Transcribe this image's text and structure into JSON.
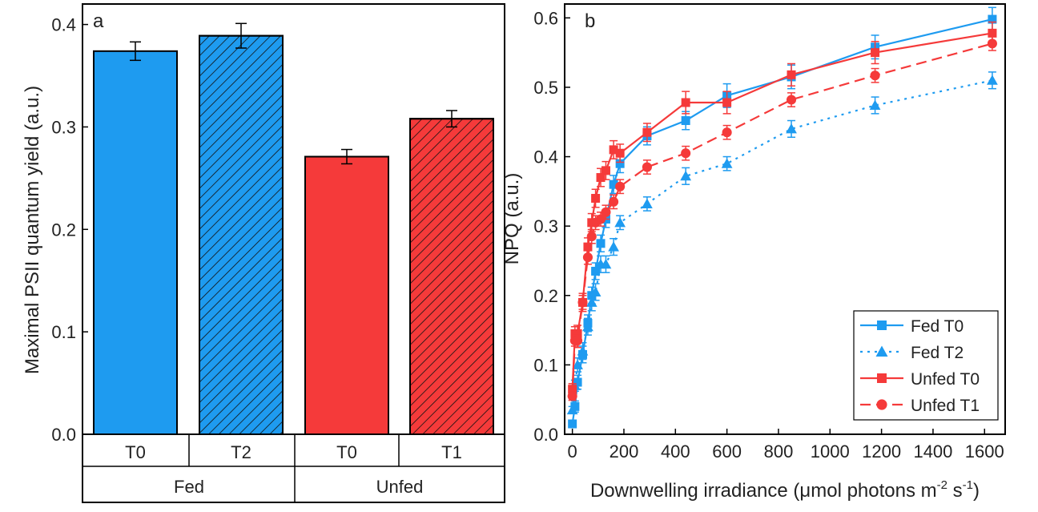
{
  "chart_data": [
    {
      "type": "bar",
      "panel_label": "a",
      "ylabel": "Maximal PSII quantum yield (a.u.)",
      "ylim": [
        0,
        0.42
      ],
      "yticks": [
        "0.0",
        "0.1",
        "0.2",
        "0.3",
        "0.4"
      ],
      "categories": [
        "T0",
        "T2",
        "T0",
        "T1"
      ],
      "groups": [
        {
          "label": "Fed",
          "span": [
            0,
            1
          ]
        },
        {
          "label": "Unfed",
          "span": [
            2,
            3
          ]
        }
      ],
      "values": [
        0.374,
        0.389,
        0.271,
        0.308
      ],
      "errors": [
        0.009,
        0.012,
        0.007,
        0.008
      ],
      "bar_colors": [
        "#1e9bf0",
        "#1e9bf0",
        "#f53a3a",
        "#f53a3a"
      ],
      "hatched": [
        false,
        true,
        false,
        true
      ]
    },
    {
      "type": "line",
      "panel_label": "b",
      "xlabel": "Downwelling irradiance (μmol photons m",
      "xlabel_sup1": "-2",
      "xlabel_mid": " s",
      "xlabel_sup2": "-1",
      "xlabel_end": ")",
      "ylabel": "NPQ (a.u.)",
      "xlim": [
        -30,
        1680
      ],
      "ylim": [
        0,
        0.62
      ],
      "xticks": [
        "0",
        "200",
        "400",
        "600",
        "800",
        "1000",
        "1200",
        "1400",
        "1600"
      ],
      "yticks": [
        "0.0",
        "0.1",
        "0.2",
        "0.3",
        "0.4",
        "0.5",
        "0.6"
      ],
      "legend_position": "bottom-right",
      "x": [
        0,
        10,
        20,
        40,
        60,
        75,
        90,
        110,
        130,
        160,
        185,
        290,
        440,
        600,
        850,
        1175,
        1630
      ],
      "series": [
        {
          "name": "Fed T0",
          "color": "#1e9bf0",
          "marker": "square",
          "dash": "solid",
          "values": [
            0.015,
            0.04,
            0.075,
            0.115,
            0.16,
            0.2,
            0.235,
            0.275,
            0.31,
            0.36,
            0.39,
            0.43,
            0.452,
            0.488,
            0.515,
            0.558,
            0.598
          ],
          "errors": [
            0.005,
            0.008,
            0.01,
            0.012,
            0.012,
            0.012,
            0.012,
            0.012,
            0.012,
            0.013,
            0.013,
            0.013,
            0.013,
            0.017,
            0.017,
            0.017,
            0.017
          ]
        },
        {
          "name": "Fed T2",
          "color": "#1e9bf0",
          "marker": "triangle",
          "dash": "dotted",
          "values": [
            0.035,
            0.07,
            0.1,
            0.12,
            0.155,
            0.19,
            0.205,
            0.245,
            0.245,
            0.27,
            0.305,
            0.332,
            0.372,
            0.39,
            0.44,
            0.474,
            0.51
          ],
          "errors": [
            0.005,
            0.008,
            0.01,
            0.012,
            0.012,
            0.012,
            0.012,
            0.012,
            0.012,
            0.012,
            0.01,
            0.01,
            0.012,
            0.01,
            0.012,
            0.012,
            0.012
          ]
        },
        {
          "name": "Unfed T0",
          "color": "#f53a3a",
          "marker": "square",
          "dash": "solid",
          "values": [
            0.065,
            0.145,
            0.145,
            0.19,
            0.27,
            0.305,
            0.34,
            0.37,
            0.38,
            0.41,
            0.405,
            0.435,
            0.478,
            0.478,
            0.518,
            0.55,
            0.578
          ],
          "errors": [
            0.008,
            0.01,
            0.012,
            0.013,
            0.013,
            0.013,
            0.013,
            0.013,
            0.013,
            0.013,
            0.013,
            0.013,
            0.016,
            0.016,
            0.016,
            0.016,
            0.016
          ]
        },
        {
          "name": "Unfed T1",
          "color": "#f53a3a",
          "marker": "circle",
          "dash": "dashed",
          "values": [
            0.055,
            0.135,
            0.135,
            0.19,
            0.255,
            0.285,
            0.305,
            0.31,
            0.32,
            0.335,
            0.357,
            0.385,
            0.405,
            0.435,
            0.482,
            0.517,
            0.563
          ],
          "errors": [
            0.006,
            0.008,
            0.01,
            0.01,
            0.01,
            0.01,
            0.01,
            0.01,
            0.01,
            0.01,
            0.01,
            0.01,
            0.01,
            0.01,
            0.01,
            0.01,
            0.01
          ]
        }
      ]
    }
  ]
}
